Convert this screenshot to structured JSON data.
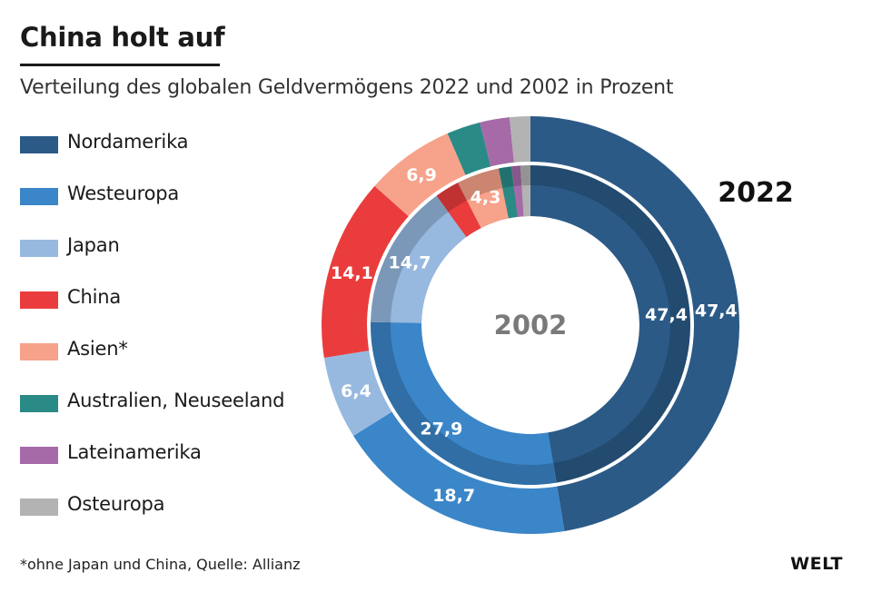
{
  "header": {
    "title": "China holt auf",
    "subtitle": "Verteilung des globalen Geldvermögens 2022 und 2002 in Prozent"
  },
  "footer": {
    "footnote": "*ohne Japan und China, Quelle: Allianz",
    "logo": "WELT"
  },
  "chart_data": {
    "type": "pie",
    "variant": "nested-donut",
    "categories": [
      "Nordamerika",
      "Westeuropa",
      "Japan",
      "China",
      "Asien*",
      "Australien, Neuseeland",
      "Lateinamerika",
      "Osteuropa"
    ],
    "colors": [
      "#2b5a87",
      "#3b86c9",
      "#97b9e0",
      "#ea3c3c",
      "#f7a28a",
      "#2a8a86",
      "#a66aa8",
      "#b3b3b3"
    ],
    "legend_placement": "left",
    "series": [
      {
        "name": "2022",
        "ring": "outer",
        "values": [
          47.4,
          18.7,
          6.4,
          14.1,
          6.9,
          2.6,
          2.3,
          1.6
        ],
        "labels": [
          "47,4",
          "18,7",
          "6,4",
          "14,1",
          "6,9",
          "",
          "",
          ""
        ]
      },
      {
        "name": "2002",
        "ring": "inner",
        "values": [
          47.4,
          27.9,
          14.7,
          2.5,
          4.3,
          1.3,
          0.9,
          1.0
        ],
        "labels": [
          "47,4",
          "27,9",
          "14,7",
          "",
          "4,3",
          "",
          "",
          ""
        ]
      }
    ]
  }
}
